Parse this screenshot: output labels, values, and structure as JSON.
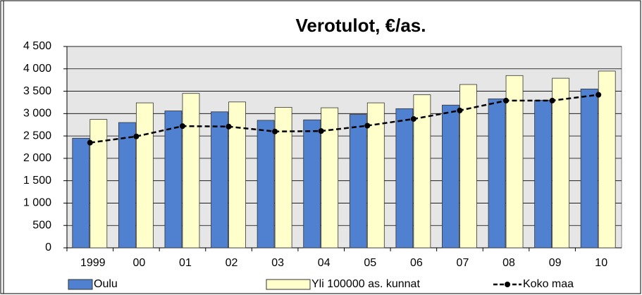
{
  "chart_data": {
    "type": "bar",
    "title": "Verotulot, €/as.",
    "categories": [
      "1999",
      "00",
      "01",
      "02",
      "03",
      "04",
      "05",
      "06",
      "07",
      "08",
      "09",
      "10"
    ],
    "series": [
      {
        "name": "Oulu",
        "type": "bar",
        "color": "#4f81d0",
        "values": [
          2450,
          2800,
          3060,
          3040,
          2850,
          2860,
          2980,
          3110,
          3190,
          3330,
          3300,
          3550
        ]
      },
      {
        "name": "Yli 100000 as. kunnat",
        "type": "bar",
        "color": "#ffffcc",
        "values": [
          2870,
          3240,
          3450,
          3260,
          3140,
          3130,
          3240,
          3420,
          3650,
          3850,
          3790,
          3950
        ]
      },
      {
        "name": "Koko maa",
        "type": "line",
        "color": "#000000",
        "values": [
          2350,
          2490,
          2720,
          2710,
          2600,
          2610,
          2730,
          2880,
          3070,
          3290,
          3290,
          3420
        ]
      }
    ],
    "ylim": [
      0,
      4500
    ],
    "yticks": [
      0,
      500,
      {
        "value": 1000,
        "label": "1 000"
      },
      {
        "value": 1500,
        "label": "1 500"
      },
      {
        "value": 2000,
        "label": "2 000"
      },
      {
        "value": 2500,
        "label": "2 500"
      },
      {
        "value": 3000,
        "label": "3 000"
      },
      {
        "value": 3500,
        "label": "3 500"
      },
      {
        "value": 4000,
        "label": "4 000"
      },
      {
        "value": 4500,
        "label": "4 500"
      }
    ],
    "grid": true,
    "legend": "bottom"
  }
}
